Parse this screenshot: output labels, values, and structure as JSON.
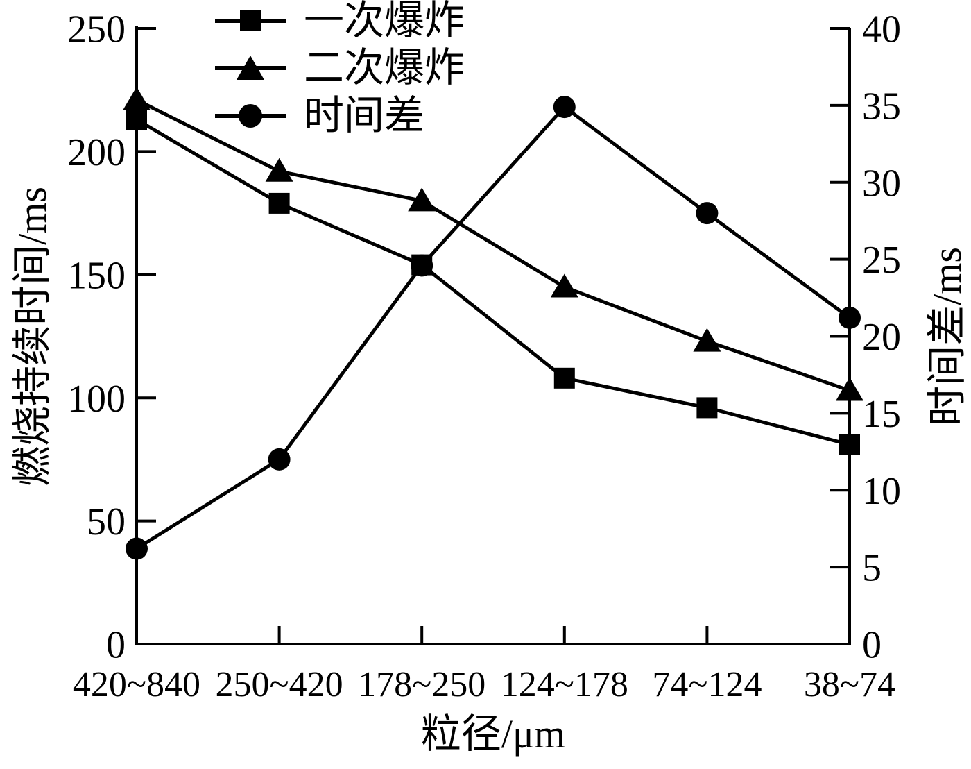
{
  "figure": {
    "background_color": "#ffffff",
    "ink_color": "#000000"
  },
  "chart_data": {
    "type": "line",
    "categories": [
      "420~840",
      "250~420",
      "178~250",
      "124~178",
      "74~124",
      "38~74"
    ],
    "xlabel": "粒径/μm",
    "left_axis": {
      "label": "燃烧持续时间/ms",
      "min": 0,
      "max": 250,
      "step": 50,
      "ticks": [
        0,
        50,
        100,
        150,
        200,
        250
      ]
    },
    "right_axis": {
      "label": "时间差/ms",
      "min": 0,
      "max": 40,
      "step": 5,
      "ticks": [
        0,
        5,
        10,
        15,
        20,
        25,
        30,
        35,
        40
      ]
    },
    "series": [
      {
        "name": "一次爆炸",
        "marker": "square",
        "axis": "left",
        "values": [
          213,
          179,
          154,
          108,
          96,
          81
        ]
      },
      {
        "name": "二次爆炸",
        "marker": "triangle",
        "axis": "left",
        "values": [
          221,
          192,
          180,
          145,
          123,
          103
        ]
      },
      {
        "name": "时间差",
        "marker": "circle",
        "axis": "right",
        "values": [
          6.2,
          12,
          24.6,
          34.9,
          28,
          21.2
        ]
      }
    ],
    "legend_position": "top-left-inside",
    "grid": false,
    "line_color": "#000000"
  }
}
